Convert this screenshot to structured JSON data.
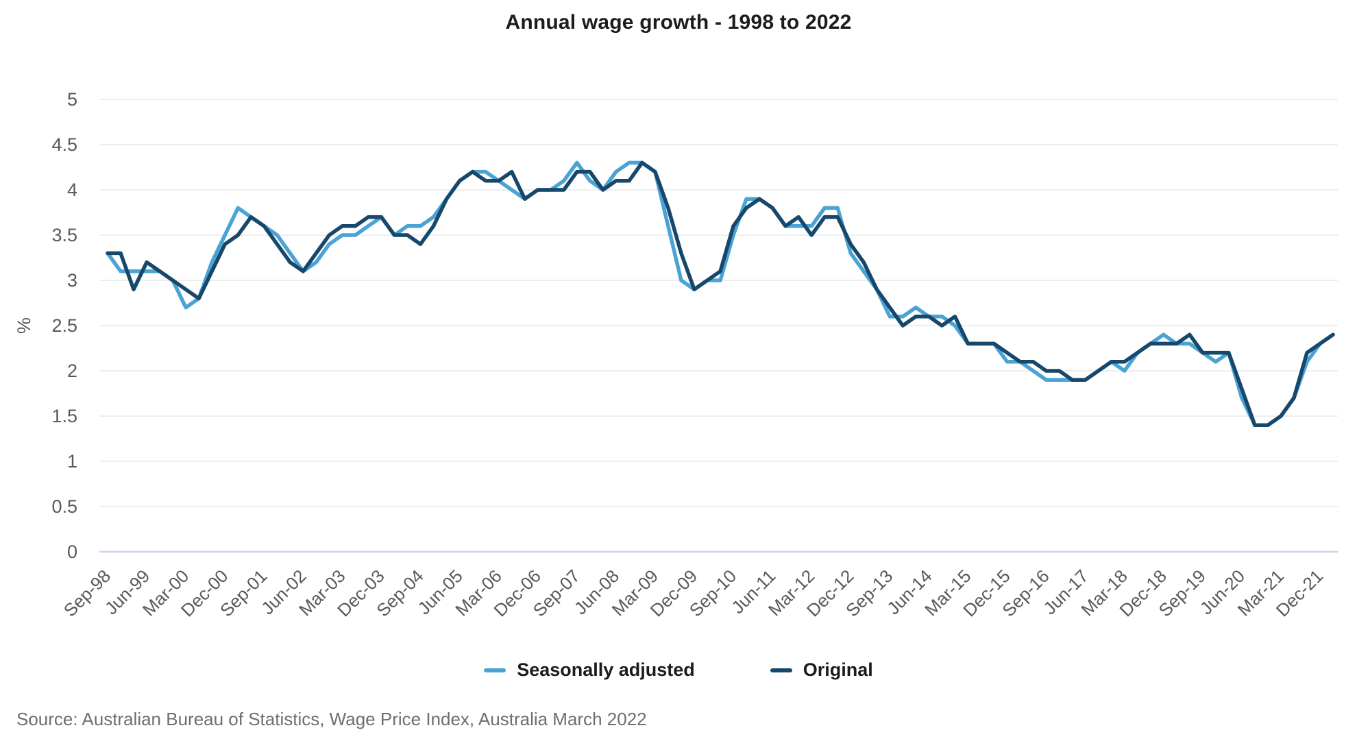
{
  "title": "Annual wage growth - 1998 to 2022",
  "source": "Source: Australian Bureau of Statistics, Wage Price Index, Australia March 2022",
  "legend": [
    {
      "label": "Seasonally adjusted",
      "color": "#4aa3d5"
    },
    {
      "label": "Original",
      "color": "#17486b"
    }
  ],
  "chart_data": {
    "type": "line",
    "title": "Annual wage growth - 1998 to 2022",
    "xlabel": "",
    "ylabel": "%",
    "ylim": [
      0,
      5
    ],
    "y_ticks": [
      0,
      0.5,
      1,
      1.5,
      2,
      2.5,
      3,
      3.5,
      4,
      4.5,
      5
    ],
    "x_tick_every": 3,
    "grid": true,
    "legend_position": "bottom",
    "grid_color": "#e9e9e9",
    "zero_line_color": "#c9d5ea",
    "tick_label_color": "#595959",
    "categories": [
      "Sep-98",
      "Dec-98",
      "Mar-99",
      "Jun-99",
      "Sep-99",
      "Dec-99",
      "Mar-00",
      "Jun-00",
      "Sep-00",
      "Dec-00",
      "Mar-01",
      "Jun-01",
      "Sep-01",
      "Dec-01",
      "Mar-02",
      "Jun-02",
      "Sep-02",
      "Dec-02",
      "Mar-03",
      "Jun-03",
      "Sep-03",
      "Dec-03",
      "Mar-04",
      "Jun-04",
      "Sep-04",
      "Dec-04",
      "Mar-05",
      "Jun-05",
      "Sep-05",
      "Dec-05",
      "Mar-06",
      "Jun-06",
      "Sep-06",
      "Dec-06",
      "Mar-07",
      "Jun-07",
      "Sep-07",
      "Dec-07",
      "Mar-08",
      "Jun-08",
      "Sep-08",
      "Dec-08",
      "Mar-09",
      "Jun-09",
      "Sep-09",
      "Dec-09",
      "Mar-10",
      "Jun-10",
      "Sep-10",
      "Dec-10",
      "Mar-11",
      "Jun-11",
      "Sep-11",
      "Dec-11",
      "Mar-12",
      "Jun-12",
      "Sep-12",
      "Dec-12",
      "Mar-13",
      "Jun-13",
      "Sep-13",
      "Dec-13",
      "Mar-14",
      "Jun-14",
      "Sep-14",
      "Dec-14",
      "Mar-15",
      "Jun-15",
      "Sep-15",
      "Dec-15",
      "Mar-16",
      "Jun-16",
      "Sep-16",
      "Dec-16",
      "Mar-17",
      "Jun-17",
      "Sep-17",
      "Dec-17",
      "Mar-18",
      "Jun-18",
      "Sep-18",
      "Dec-18",
      "Mar-19",
      "Jun-19",
      "Sep-19",
      "Dec-19",
      "Mar-20",
      "Jun-20",
      "Sep-20",
      "Dec-20",
      "Mar-21",
      "Jun-21",
      "Sep-21",
      "Dec-21",
      "Mar-22"
    ],
    "series": [
      {
        "name": "Seasonally adjusted",
        "color": "#4aa3d5",
        "values": [
          3.3,
          3.1,
          3.1,
          3.1,
          3.1,
          3.0,
          2.7,
          2.8,
          3.2,
          3.5,
          3.8,
          3.7,
          3.6,
          3.5,
          3.3,
          3.1,
          3.2,
          3.4,
          3.5,
          3.5,
          3.6,
          3.7,
          3.5,
          3.6,
          3.6,
          3.7,
          3.9,
          4.1,
          4.2,
          4.2,
          4.1,
          4.0,
          3.9,
          4.0,
          4.0,
          4.1,
          4.3,
          4.1,
          4.0,
          4.2,
          4.3,
          4.3,
          4.2,
          3.6,
          3.0,
          2.9,
          3.0,
          3.0,
          3.5,
          3.9,
          3.9,
          3.8,
          3.6,
          3.6,
          3.6,
          3.8,
          3.8,
          3.3,
          3.1,
          2.9,
          2.6,
          2.6,
          2.7,
          2.6,
          2.6,
          2.5,
          2.3,
          2.3,
          2.3,
          2.1,
          2.1,
          2.0,
          1.9,
          1.9,
          1.9,
          1.9,
          2.0,
          2.1,
          2.0,
          2.2,
          2.3,
          2.4,
          2.3,
          2.3,
          2.2,
          2.1,
          2.2,
          1.7,
          1.4,
          1.4,
          1.5,
          1.7,
          2.1,
          2.3,
          2.4
        ]
      },
      {
        "name": "Original",
        "color": "#17486b",
        "values": [
          3.3,
          3.3,
          2.9,
          3.2,
          3.1,
          3.0,
          2.9,
          2.8,
          3.1,
          3.4,
          3.5,
          3.7,
          3.6,
          3.4,
          3.2,
          3.1,
          3.3,
          3.5,
          3.6,
          3.6,
          3.7,
          3.7,
          3.5,
          3.5,
          3.4,
          3.6,
          3.9,
          4.1,
          4.2,
          4.1,
          4.1,
          4.2,
          3.9,
          4.0,
          4.0,
          4.0,
          4.2,
          4.2,
          4.0,
          4.1,
          4.1,
          4.3,
          4.2,
          3.8,
          3.3,
          2.9,
          3.0,
          3.1,
          3.6,
          3.8,
          3.9,
          3.8,
          3.6,
          3.7,
          3.5,
          3.7,
          3.7,
          3.4,
          3.2,
          2.9,
          2.7,
          2.5,
          2.6,
          2.6,
          2.5,
          2.6,
          2.3,
          2.3,
          2.3,
          2.2,
          2.1,
          2.1,
          2.0,
          2.0,
          1.9,
          1.9,
          2.0,
          2.1,
          2.1,
          2.2,
          2.3,
          2.3,
          2.3,
          2.4,
          2.2,
          2.2,
          2.2,
          1.8,
          1.4,
          1.4,
          1.5,
          1.7,
          2.2,
          2.3,
          2.4
        ]
      }
    ]
  }
}
